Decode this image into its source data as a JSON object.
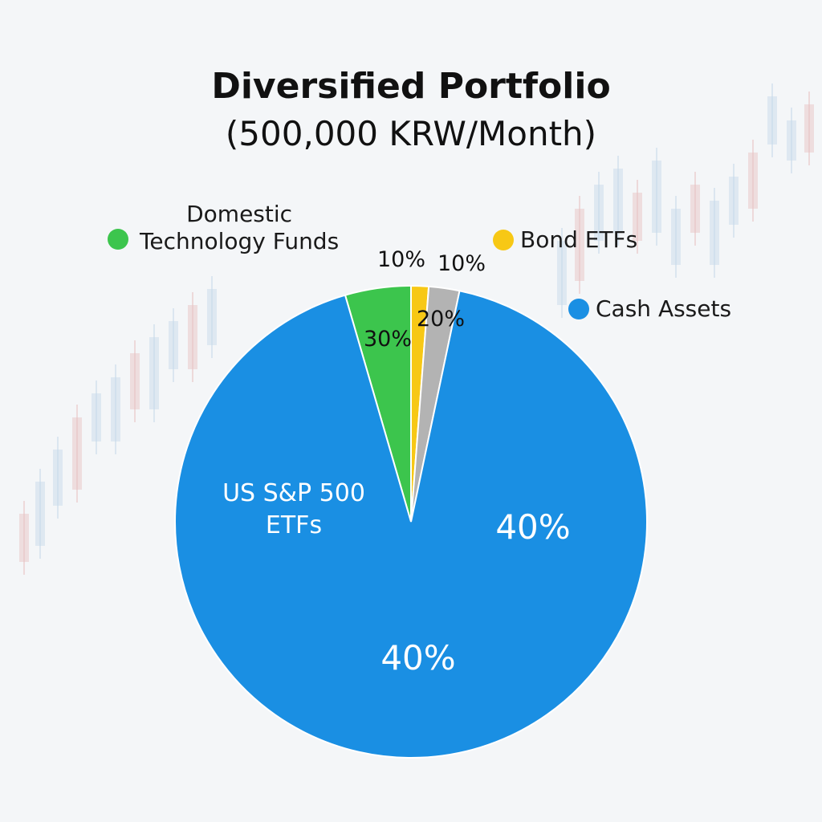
{
  "chart_data": {
    "type": "pie",
    "title": "Diversified Portfolio",
    "subtitle": "(500,000 KRW/Month)",
    "legend": [
      {
        "label": "Domestic\nTechnology Funds",
        "color": "#3cc54d"
      },
      {
        "label": "Bond ETFs",
        "color": "#f7c815"
      },
      {
        "label": "Cash Assets",
        "color": "#1a8fe3"
      }
    ],
    "slices": [
      {
        "label": "US S&P 500\nETFs",
        "value": 92.2,
        "color": "#1a8fe3"
      },
      {
        "label": "",
        "value": 4.5,
        "color": "#3cc54d"
      },
      {
        "label": "",
        "value": 1.2,
        "color": "#f7c815"
      },
      {
        "label": "",
        "value": 2.1,
        "color": "#b3b3b3"
      }
    ],
    "annotations": [
      "10%",
      "10%",
      "30%",
      "20%",
      "40%",
      "40%"
    ]
  }
}
